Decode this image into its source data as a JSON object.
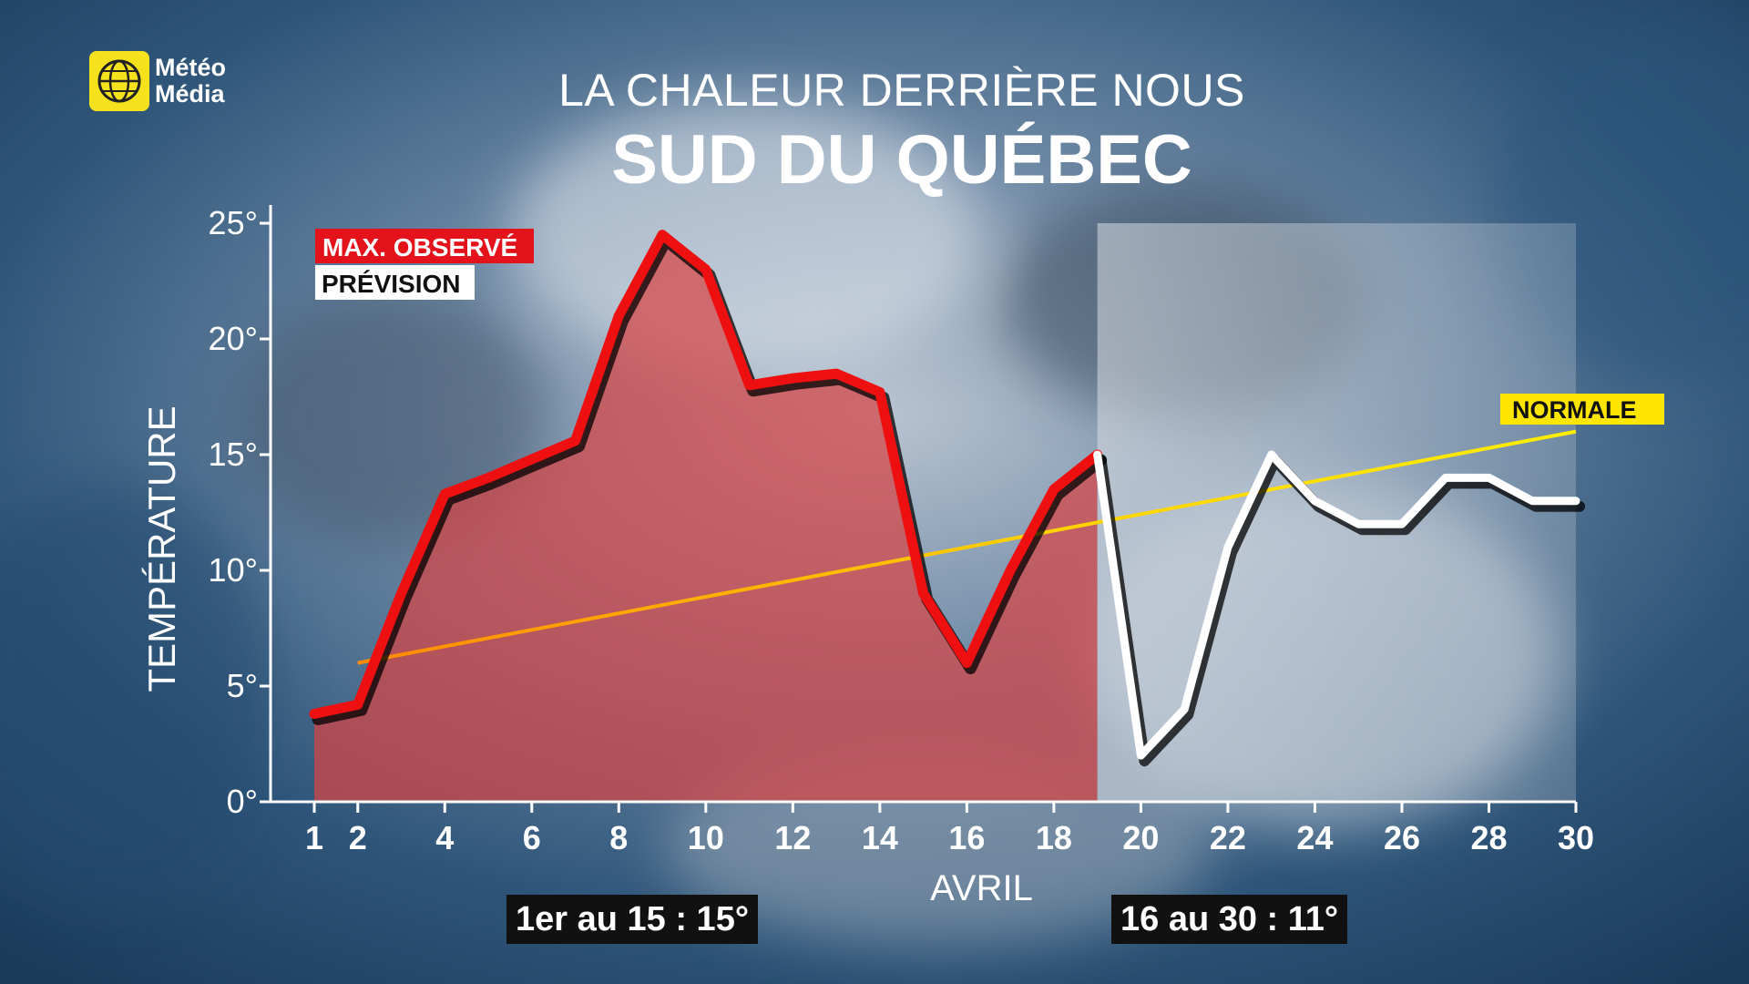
{
  "brand": {
    "line1": "Météo",
    "line2": "Média"
  },
  "title": "LA CHALEUR DERRIÈRE NOUS",
  "subtitle": "SUD DU QUÉBEC",
  "legend": {
    "observed": "MAX. OBSERVÉ",
    "forecast": "PRÉVISION",
    "normal": "NORMALE"
  },
  "summary": {
    "first_half": "1er au 15 : 15°",
    "second_half": "16 au 30 : 11°"
  },
  "colors": {
    "observed": "#ee1010",
    "forecast": "#ffffff",
    "normal": "#ffe600",
    "fill": "#d64545"
  },
  "chart_data": {
    "type": "line",
    "xlabel": "AVRIL",
    "ylabel": "TEMPÉRATURE",
    "xlim": [
      1,
      30
    ],
    "ylim": [
      0,
      25
    ],
    "x_ticks": [
      1,
      2,
      4,
      6,
      8,
      10,
      12,
      14,
      16,
      18,
      20,
      22,
      24,
      26,
      28,
      30
    ],
    "y_ticks": [
      "0°",
      "5°",
      "10°",
      "15°",
      "20°",
      "25°"
    ],
    "series": [
      {
        "name": "MAX. OBSERVÉ",
        "x": [
          1,
          2,
          3,
          4,
          5,
          6,
          7,
          8,
          9,
          10,
          11,
          12,
          13,
          14,
          15,
          16,
          17,
          18,
          19
        ],
        "values": [
          3.8,
          4.2,
          9,
          13.3,
          14,
          14.8,
          15.6,
          21,
          24.5,
          23,
          18,
          18.3,
          18.5,
          17.7,
          9,
          6,
          10,
          13.5,
          15
        ]
      },
      {
        "name": "PRÉVISION",
        "x": [
          19,
          20,
          21,
          22,
          23,
          24,
          25,
          26,
          27,
          28,
          29,
          30
        ],
        "values": [
          15,
          2,
          4,
          11,
          15,
          13,
          12,
          12,
          14,
          14,
          13,
          13
        ]
      },
      {
        "name": "NORMALE",
        "x": [
          2,
          30
        ],
        "values": [
          6,
          16
        ]
      }
    ]
  }
}
